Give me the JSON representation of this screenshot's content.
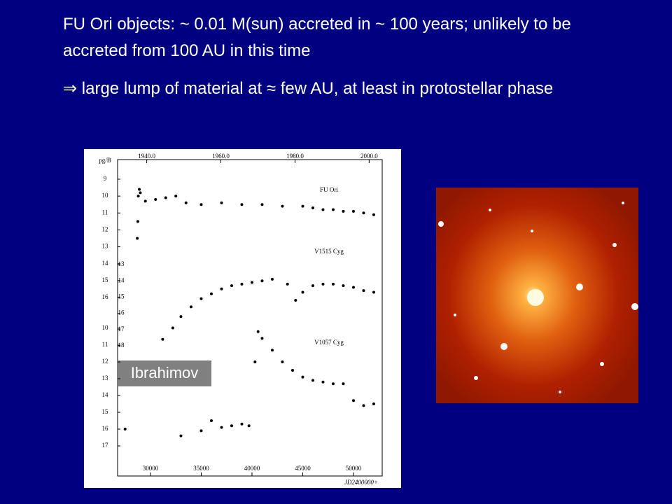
{
  "slide": {
    "bullets": [
      "FU Ori objects: ~ 0.01 M(sun) accreted in ~ 100 years; unlikely to be accreted from 100 AU in this time",
      "⇒ large lump of material at ≈ few AU, at least in protostellar phase"
    ],
    "credit": "Ibrahimov",
    "figure": {
      "y_axis_label": "pg/B",
      "x_axis_label": "JD2400000+",
      "xlim": [
        26760,
        52830
      ],
      "xticks": [
        30000,
        35000,
        40000,
        45000,
        50000
      ],
      "year_ticks": [
        {
          "value": 1940,
          "label": "1940.0"
        },
        {
          "value": 1960,
          "label": "1960.0"
        },
        {
          "value": 1980,
          "label": "1980.0"
        },
        {
          "value": 2000,
          "label": "2000.0"
        }
      ],
      "scales": [
        {
          "ticks": [
            9,
            10,
            11,
            12,
            13,
            14,
            15,
            16
          ]
        },
        {
          "ticks": [
            13,
            14,
            15,
            16,
            17,
            18
          ]
        },
        {
          "ticks": [
            10,
            11,
            12,
            13,
            14,
            15,
            16,
            17
          ]
        }
      ],
      "curves": [
        {
          "name": "FU Ori",
          "scale": 0,
          "jd": [
            28700,
            28750,
            28800,
            28900,
            29000,
            29500,
            30500,
            31500,
            32500,
            33500,
            35000,
            37000,
            39000,
            41000,
            43000,
            45000,
            46000,
            47000,
            48000,
            49000,
            50000,
            51000,
            52000
          ],
          "mag": [
            12.5,
            11.5,
            10.0,
            9.6,
            9.8,
            10.3,
            10.2,
            10.1,
            10.0,
            10.4,
            10.5,
            10.4,
            10.5,
            10.5,
            10.6,
            10.6,
            10.7,
            10.8,
            10.8,
            10.9,
            10.9,
            11.0,
            11.1
          ]
        },
        {
          "name": "V1515 Cyg",
          "scale": 1,
          "jd": [
            31200,
            32200,
            33000,
            34000,
            35000,
            36000,
            37000,
            38000,
            39000,
            40000,
            41000,
            42000,
            43500,
            44300,
            45000,
            46000,
            47000,
            48000,
            49000,
            50000,
            51000,
            52000
          ],
          "mag": [
            17.6,
            16.9,
            16.2,
            15.6,
            15.1,
            14.8,
            14.5,
            14.3,
            14.2,
            14.1,
            14.0,
            13.9,
            14.2,
            15.2,
            14.7,
            14.3,
            14.2,
            14.2,
            14.3,
            14.4,
            14.6,
            14.7
          ]
        },
        {
          "name": "V1057 Cyg",
          "scale": 2,
          "jd": [
            27500,
            33000,
            35000,
            36000,
            37000,
            38000,
            39000,
            39700,
            40300,
            40600,
            41000,
            42000,
            43000,
            44000,
            45000,
            46000,
            47000,
            48000,
            49000,
            50000,
            51000,
            52000
          ],
          "mag": [
            16.0,
            16.4,
            16.1,
            15.5,
            15.9,
            15.8,
            15.7,
            15.8,
            12.0,
            10.2,
            10.6,
            11.3,
            12.0,
            12.5,
            12.9,
            13.1,
            13.2,
            13.3,
            13.3,
            14.3,
            14.6,
            14.5
          ]
        }
      ]
    }
  }
}
